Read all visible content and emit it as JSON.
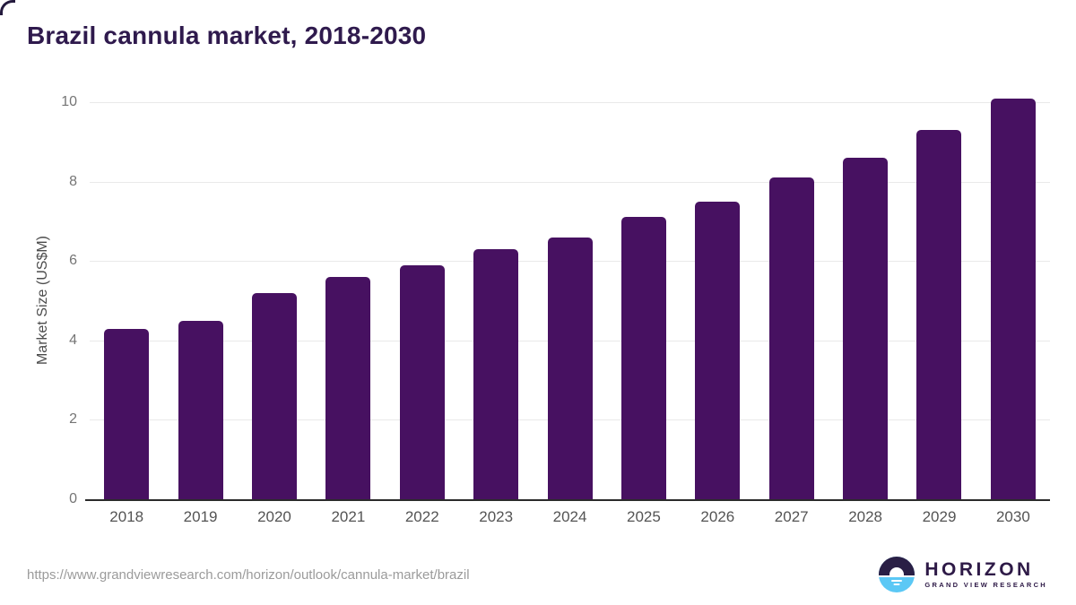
{
  "title": "Brazil cannula market, 2018-2030",
  "chart_data": {
    "type": "bar",
    "title": "Brazil cannula market, 2018-2030",
    "categories": [
      "2018",
      "2019",
      "2020",
      "2021",
      "2022",
      "2023",
      "2024",
      "2025",
      "2026",
      "2027",
      "2028",
      "2029",
      "2030"
    ],
    "values": [
      4.3,
      4.5,
      5.2,
      5.6,
      5.9,
      6.3,
      6.6,
      7.1,
      7.5,
      8.1,
      8.6,
      9.3,
      10.1
    ],
    "xlabel": "",
    "ylabel": "Market Size (US$M)",
    "ylim": [
      0,
      10
    ],
    "yticks": [
      0,
      2,
      4,
      6,
      8,
      10
    ],
    "grid": true,
    "legend_position": "none",
    "bar_color": "#471161"
  },
  "footer": {
    "source_url": "https://www.grandviewresearch.com/horizon/outlook/cannula-market/brazil",
    "logo_title": "HORIZON",
    "logo_subtitle": "GRAND VIEW RESEARCH"
  },
  "colors": {
    "bar": "#471161",
    "title_text": "#2f1a4d",
    "axis_line": "#2b2b2b",
    "gridline": "#e9e9e9",
    "y_tick_label": "#757575",
    "x_tick_label": "#545454",
    "url_text": "#9b9b9b",
    "logo_dark": "#2a1f45",
    "logo_blue": "#5bc8f5"
  }
}
